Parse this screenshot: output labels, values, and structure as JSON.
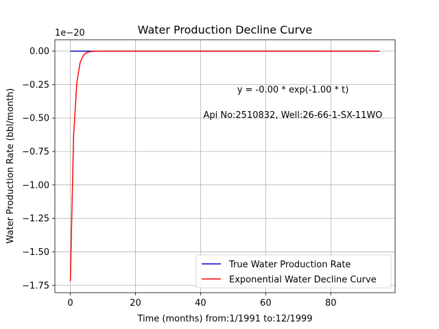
{
  "chart_data": {
    "type": "line",
    "title": "Water Production Decline Curve",
    "xlabel": "Time (months) from:1/1991 to:12/1999",
    "ylabel": "Water Production Rate (bbl/month)",
    "y_offset_label": "1e−20",
    "xlim": [
      -4.75,
      99.75
    ],
    "ylim": [
      -1.805,
      0.085
    ],
    "x_ticks": [
      0,
      20,
      40,
      60,
      80
    ],
    "x_tick_labels": [
      "0",
      "20",
      "40",
      "60",
      "80"
    ],
    "y_ticks": [
      0.0,
      -0.25,
      -0.5,
      -0.75,
      -1.0,
      -1.25,
      -1.5,
      -1.75
    ],
    "y_tick_labels": [
      "0.00",
      "−0.25",
      "−0.50",
      "−0.75",
      "−1.00",
      "−1.25",
      "−1.50",
      "−1.75"
    ],
    "grid": true,
    "legend_position": "lower-right",
    "annotations": [
      {
        "text": "y = -0.00 * exp(-1.00 * t)"
      },
      {
        "text": "Api No:2510832, Well:26-66-1-SX-11WO"
      }
    ],
    "series": [
      {
        "name": "True Water Production Rate",
        "color": "#0000cc",
        "x": [
          0,
          95
        ],
        "y": [
          0,
          0
        ]
      },
      {
        "name": "Exponential Water Decline Curve",
        "color": "#ff0000",
        "x": [
          0,
          1,
          2,
          3,
          4,
          5,
          6,
          7,
          8,
          10,
          15,
          20,
          30,
          40,
          50,
          60,
          70,
          80,
          90,
          95
        ],
        "y": [
          -1.72,
          -0.633,
          -0.233,
          -0.0857,
          -0.0315,
          -0.0116,
          -0.00427,
          -0.00157,
          -0.00058,
          -8e-05,
          0,
          0,
          0,
          0,
          0,
          0,
          0,
          0,
          0,
          0
        ]
      }
    ]
  }
}
